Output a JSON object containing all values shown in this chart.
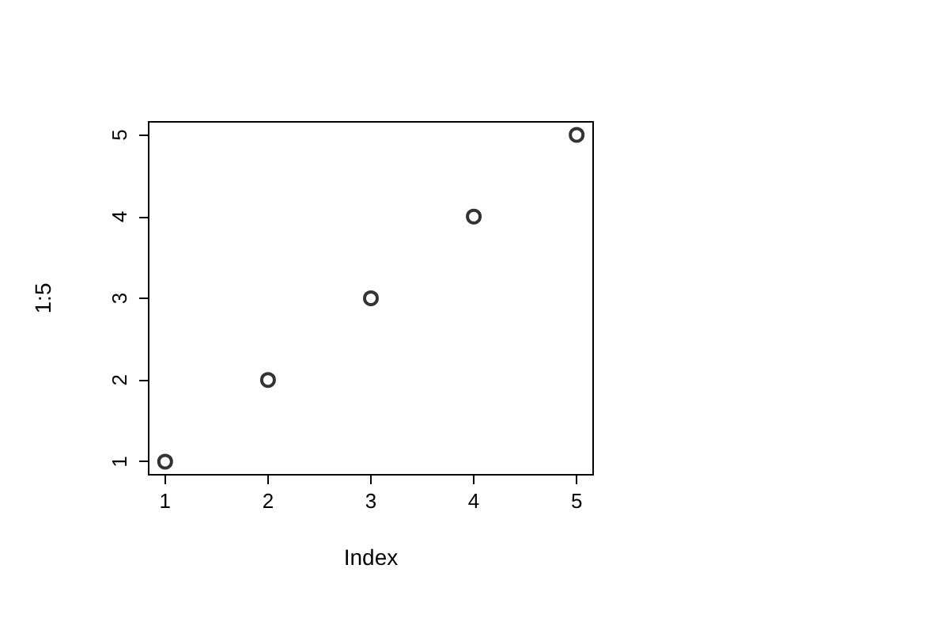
{
  "chart_data": {
    "type": "scatter",
    "xlabel": "Index",
    "ylabel": "1:5",
    "x": [
      1,
      2,
      3,
      4,
      5
    ],
    "values": [
      1,
      2,
      3,
      4,
      5
    ],
    "color": "#000000",
    "marker": "circle",
    "xlim": [
      0.84,
      5.16
    ],
    "ylim": [
      0.84,
      5.16
    ],
    "xticks": [
      1,
      2,
      3,
      4,
      5
    ],
    "yticks": [
      1,
      2,
      3,
      4,
      5
    ],
    "grid": false
  }
}
